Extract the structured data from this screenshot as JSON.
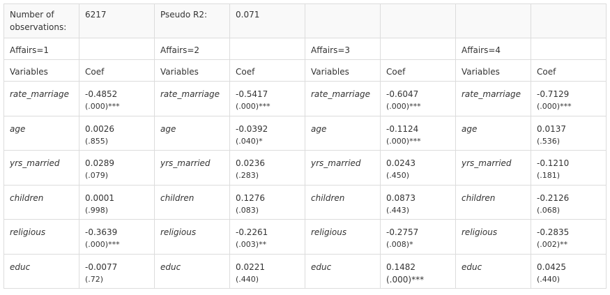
{
  "header": {
    "obs_label": "Number of observations:",
    "obs_value": "6217",
    "pseudo_label": "Pseudo R2:",
    "pseudo_value": "0.071"
  },
  "groups": [
    "Affairs=1",
    "Affairs=2",
    "Affairs=3",
    "Affairs=4"
  ],
  "col_labels": {
    "variables": "Variables",
    "coef": "Coef"
  },
  "rows": [
    {
      "var": "rate_marriage",
      "cells": [
        {
          "coef": "-0.4852",
          "p": "(.000)***"
        },
        {
          "coef": "-0.5417",
          "p": "(.000)***"
        },
        {
          "coef": "-0.6047",
          "p": "(.000)***"
        },
        {
          "coef": "-0.7129",
          "p": "(.000)***"
        }
      ]
    },
    {
      "var": "age",
      "cells": [
        {
          "coef": "0.0026",
          "p": "(.855)"
        },
        {
          "coef": "-0.0392",
          "p": "(.040)*"
        },
        {
          "coef": "-0.1124",
          "p": "(.000)***"
        },
        {
          "coef": "0.0137",
          "p": "(.536)"
        }
      ]
    },
    {
      "var": "yrs_married",
      "cells": [
        {
          "coef": "0.0289",
          "p": "(.079)"
        },
        {
          "coef": "0.0236",
          "p": "(.283)"
        },
        {
          "coef": "0.0243",
          "p": "(.450)"
        },
        {
          "coef": "-0.1210",
          "p": "(.181)"
        }
      ]
    },
    {
      "var": "children",
      "cells": [
        {
          "coef": "0.0001",
          "p": "(.998)"
        },
        {
          "coef": "0.1276",
          "p": "(.083)"
        },
        {
          "coef": "0.0873",
          "p": "(.443)"
        },
        {
          "coef": "-0.2126",
          "p": "(.068)"
        }
      ]
    },
    {
      "var": "religious",
      "cells": [
        {
          "coef": "-0.3639",
          "p": "(.000)***"
        },
        {
          "coef": "-0.2261",
          "p": "(.003)**"
        },
        {
          "coef": "-0.2757",
          "p": "(.008)*"
        },
        {
          "coef": "-0.2835",
          "p": "(.002)**"
        }
      ]
    },
    {
      "var": "educ",
      "cells": [
        {
          "coef": "-0.0077",
          "p": " (.72)"
        },
        {
          "coef": "0.0221",
          "p": "(.440)"
        },
        {
          "coef": "0.1482  (.000)***",
          "p": ""
        },
        {
          "coef": "0.0425",
          "p": "(.440)"
        }
      ]
    }
  ]
}
